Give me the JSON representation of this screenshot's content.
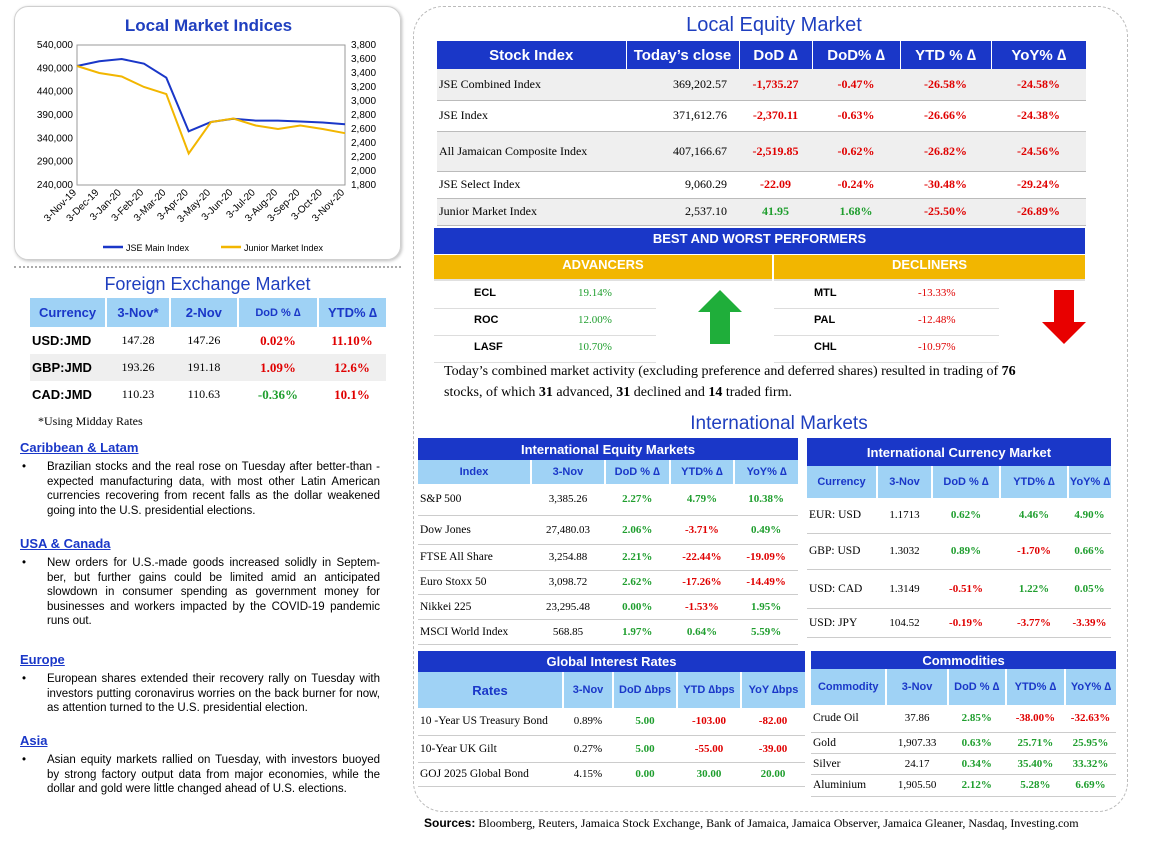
{
  "chart": {
    "title": "Local Market Indices",
    "left_ticks": [
      "540,000",
      "490,000",
      "440,000",
      "390,000",
      "340,000",
      "290,000",
      "240,000"
    ],
    "right_ticks": [
      "3,800",
      "3,600",
      "3,400",
      "3,200",
      "3,000",
      "2,800",
      "2,600",
      "2,400",
      "2,200",
      "2,000",
      "1,800"
    ],
    "x_ticks": [
      "3-Nov-19",
      "3-Dec-19",
      "3-Jan-20",
      "3-Feb-20",
      "3-Mar-20",
      "3-Apr-20",
      "3-May-20",
      "3-Jun-20",
      "3-Jul-20",
      "3-Aug-20",
      "3-Sep-20",
      "3-Oct-20",
      "3-Nov-20"
    ],
    "legend": [
      "JSE Main Index",
      "Junior Market Index"
    ]
  },
  "chart_data": {
    "type": "line",
    "title": "Local Market Indices",
    "x": [
      "3-Nov-19",
      "3-Dec-19",
      "3-Jan-20",
      "3-Feb-20",
      "3-Mar-20",
      "3-Apr-20",
      "3-May-20",
      "3-Jun-20",
      "3-Jul-20",
      "3-Aug-20",
      "3-Sep-20",
      "3-Oct-20",
      "3-Nov-20"
    ],
    "series": [
      {
        "name": "JSE Main Index",
        "axis": "left",
        "color": "#1a37c8",
        "values": [
          495000,
          505000,
          510000,
          500000,
          470000,
          355000,
          375000,
          382000,
          378000,
          378000,
          376000,
          374000,
          370000
        ]
      },
      {
        "name": "Junior Market Index",
        "axis": "right",
        "color": "#f2b600",
        "values": [
          3500,
          3400,
          3350,
          3200,
          3100,
          2250,
          2700,
          2750,
          2650,
          2600,
          2650,
          2600,
          2540
        ]
      }
    ],
    "ylim": [
      240000,
      540000
    ],
    "y2lim": [
      1800,
      3800
    ],
    "legend_position": "bottom"
  },
  "colors": {
    "accent_blue": "#1a37c8",
    "light_blue": "#9fd2f5",
    "gold": "#f2b600",
    "red": "#e00000",
    "green": "#1f9e2e"
  },
  "fx": {
    "title": "Foreign Exchange Market",
    "headers": [
      "Currency",
      "3-Nov*",
      "2-Nov",
      "DoD % ∆",
      "YTD% ∆"
    ],
    "rows": [
      [
        "USD:JMD",
        "147.28",
        "147.26",
        "0.02%",
        "11.10%"
      ],
      [
        "GBP:JMD",
        "193.26",
        "191.18",
        "1.09%",
        "12.6%"
      ],
      [
        "CAD:JMD",
        "110.23",
        "110.63",
        "-0.36%",
        "10.1%"
      ]
    ],
    "note": "*Using Midday Rates"
  },
  "news": [
    {
      "head": "Caribbean & Latam",
      "text": "Brazilian stocks and the real rose on Tuesday after better-than -expected manufacturing data, with most other Latin American currencies recovering from recent falls as the dollar weakened going into the U.S. presidential elections."
    },
    {
      "head": "USA & Canada",
      "text": "New orders for U.S.-made goods increased solidly in Septem-ber, but further gains could be limited amid an anticipated slowdown in consumer spending as government money for businesses and workers impacted by the COVID-19 pandemic runs out."
    },
    {
      "head": "Europe",
      "text": "European shares extended their recovery rally on Tuesday with investors putting coronavirus worries on the back burner for now, as attention turned to the U.S. presidential election."
    },
    {
      "head": "Asia",
      "text": "Asian equity markets rallied on Tuesday, with investors buoyed by strong factory output data from major economies, while the dollar and gold were little changed ahead of U.S. elections."
    }
  ],
  "equity": {
    "title": "Local Equity Market",
    "headers": [
      "Stock Index",
      "Today’s close",
      "DoD  ∆",
      "DoD% ∆",
      "YTD % ∆",
      "YoY% ∆"
    ],
    "rows": [
      [
        "JSE Combined Index",
        "369,202.57",
        "-1,735.27",
        "-0.47%",
        "-26.58%",
        "-24.58%"
      ],
      [
        "JSE Index",
        "371,612.76",
        "-2,370.11",
        "-0.63%",
        "-26.66%",
        "-24.38%"
      ],
      [
        "All Jamaican Composite Index",
        "407,166.67",
        "-2,519.85",
        "-0.62%",
        "-26.82%",
        "-24.56%"
      ],
      [
        "JSE Select Index",
        "9,060.29",
        "-22.09",
        "-0.24%",
        "-30.48%",
        "-29.24%"
      ],
      [
        "Junior Market Index",
        "2,537.10",
        "41.95",
        "1.68%",
        "-25.50%",
        "-26.89%"
      ]
    ]
  },
  "performers": {
    "title": "BEST AND WORST PERFORMERS",
    "adv_label": "ADVANCERS",
    "dec_label": "DECLINERS",
    "advancers": [
      [
        "ECL",
        "19.14%"
      ],
      [
        "ROC",
        "12.00%"
      ],
      [
        "LASF",
        "10.70%"
      ]
    ],
    "decliners": [
      [
        "MTL",
        "-13.33%"
      ],
      [
        "PAL",
        "-12.48%"
      ],
      [
        "CHL",
        "-10.97%"
      ]
    ]
  },
  "summary": {
    "p1": "Today’s combined market activity (excluding preference and deferred shares) resulted in trading of ",
    "n1": "76",
    "p2": "stocks, of which ",
    "n2": "31",
    "p3": " advanced, ",
    "n3": "31",
    "p4": " declined and ",
    "n4": "14",
    "p5": " traded firm."
  },
  "intl": {
    "title": "International Markets",
    "equity": {
      "title": "International Equity Markets",
      "headers": [
        "Index",
        "3-Nov",
        "DoD % ∆",
        "YTD% ∆",
        "YoY% ∆"
      ],
      "rows": [
        [
          "S&P 500",
          "3,385.26",
          "2.27%",
          "4.79%",
          "10.38%"
        ],
        [
          "Dow Jones",
          "27,480.03",
          "2.06%",
          "-3.71%",
          "0.49%"
        ],
        [
          "FTSE All Share",
          "3,254.88",
          "2.21%",
          "-22.44%",
          "-19.09%"
        ],
        [
          "Euro Stoxx 50",
          "3,098.72",
          "2.62%",
          "-17.26%",
          "-14.49%"
        ],
        [
          "Nikkei 225",
          "23,295.48",
          "0.00%",
          "-1.53%",
          "1.95%"
        ],
        [
          "MSCI World Index",
          "568.85",
          "1.97%",
          "0.64%",
          "5.59%"
        ]
      ]
    },
    "currency": {
      "title": "International Currency Market",
      "headers": [
        "Currency",
        "3-Nov",
        "DoD % ∆",
        "YTD% ∆",
        "YoY% ∆"
      ],
      "rows": [
        [
          "EUR: USD",
          "1.1713",
          "0.62%",
          "4.46%",
          "4.90%"
        ],
        [
          "GBP: USD",
          "1.3032",
          "0.89%",
          "-1.70%",
          "0.66%"
        ],
        [
          "USD: CAD",
          "1.3149",
          "-0.51%",
          "1.22%",
          "0.05%"
        ],
        [
          "USD: JPY",
          "104.52",
          "-0.19%",
          "-3.77%",
          "-3.39%"
        ]
      ]
    },
    "rates": {
      "title": "Global Interest Rates",
      "headers": [
        "Rates",
        "3-Nov",
        "DoD ∆bps",
        "YTD ∆bps",
        "YoY ∆bps"
      ],
      "rows": [
        [
          "10 -Year US Treasury Bond",
          "0.89%",
          "5.00",
          "-103.00",
          "-82.00"
        ],
        [
          "10-Year UK Gilt",
          "0.27%",
          "5.00",
          "-55.00",
          "-39.00"
        ],
        [
          "GOJ 2025 Global Bond",
          "4.15%",
          "0.00",
          "30.00",
          "20.00"
        ]
      ]
    },
    "commodities": {
      "title": "Commodities",
      "headers": [
        "Commodity",
        "3-Nov",
        "DoD % ∆",
        "YTD% ∆",
        "YoY% ∆"
      ],
      "rows": [
        [
          "Crude Oil",
          "37.86",
          "2.85%",
          "-38.00%",
          "-32.63%"
        ],
        [
          "Gold",
          "1,907.33",
          "0.63%",
          "25.71%",
          "25.95%"
        ],
        [
          "Silver",
          "24.17",
          "0.34%",
          "35.40%",
          "33.32%"
        ],
        [
          "Aluminium",
          "1,905.50",
          "2.12%",
          "5.28%",
          "6.69%"
        ]
      ]
    }
  },
  "sources": {
    "label": "Sources:",
    "text": " Bloomberg, Reuters, Jamaica Stock Exchange, Bank of Jamaica, Jamaica Observer, Jamaica Gleaner, Nasdaq, Investing.com"
  }
}
